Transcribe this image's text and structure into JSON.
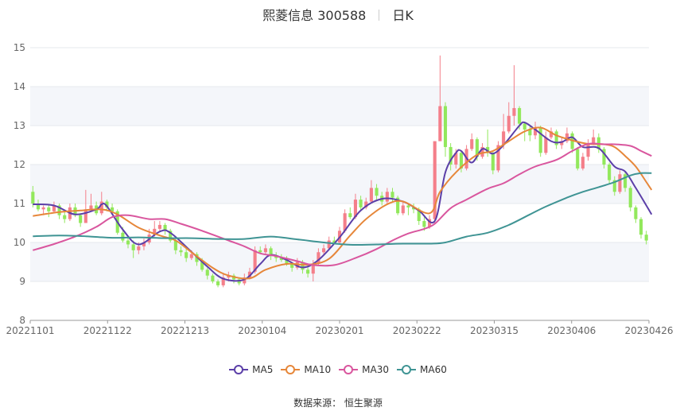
{
  "title": {
    "name": "熙菱信息 300588",
    "period": "日K"
  },
  "source": "数据来源： 恒生聚源",
  "colors": {
    "up": "#f47f8a",
    "down": "#92e85c",
    "grid": "#e6e8ee",
    "band": "#f4f6fa",
    "axis": "#666666"
  },
  "chart_data": {
    "type": "candlestick",
    "ylim": [
      8,
      15
    ],
    "yticks": [
      8,
      9,
      10,
      11,
      12,
      13,
      14,
      15
    ],
    "xticks": [
      "20221101",
      "20221122",
      "20221213",
      "20230104",
      "20230201",
      "20230222",
      "20230315",
      "20230406",
      "20230426"
    ],
    "legend_position": "bottom",
    "candles": [
      [
        11.3,
        11.0,
        11.45,
        10.9
      ],
      [
        11.0,
        10.85,
        11.1,
        10.8
      ],
      [
        10.85,
        10.9,
        10.95,
        10.7
      ],
      [
        10.9,
        10.8,
        10.95,
        10.65
      ],
      [
        10.8,
        10.95,
        11.05,
        10.75
      ],
      [
        10.95,
        10.7,
        11.0,
        10.6
      ],
      [
        10.7,
        10.6,
        10.8,
        10.5
      ],
      [
        10.6,
        10.9,
        11.0,
        10.55
      ],
      [
        10.9,
        10.7,
        11.0,
        10.65
      ],
      [
        10.7,
        10.5,
        10.75,
        10.4
      ],
      [
        10.5,
        10.85,
        11.35,
        10.5
      ],
      [
        10.85,
        10.95,
        11.25,
        10.8
      ],
      [
        10.95,
        10.75,
        11.05,
        10.7
      ],
      [
        10.75,
        11.05,
        11.3,
        10.7
      ],
      [
        11.05,
        10.9,
        11.1,
        10.8
      ],
      [
        10.9,
        10.8,
        11.0,
        10.7
      ],
      [
        10.8,
        10.25,
        10.85,
        10.2
      ],
      [
        10.25,
        10.05,
        10.4,
        10.0
      ],
      [
        10.05,
        9.95,
        10.15,
        9.85
      ],
      [
        9.95,
        9.8,
        10.05,
        9.6
      ],
      [
        9.8,
        9.9,
        10.0,
        9.7
      ],
      [
        9.9,
        10.0,
        10.1,
        9.8
      ],
      [
        10.0,
        10.2,
        10.35,
        9.95
      ],
      [
        10.2,
        10.35,
        10.55,
        10.15
      ],
      [
        10.35,
        10.45,
        10.55,
        10.3
      ],
      [
        10.45,
        10.3,
        10.5,
        10.2
      ],
      [
        10.3,
        10.05,
        10.35,
        10.0
      ],
      [
        10.05,
        9.8,
        10.1,
        9.7
      ],
      [
        9.8,
        9.75,
        9.9,
        9.65
      ],
      [
        9.75,
        9.6,
        9.85,
        9.5
      ],
      [
        9.6,
        9.7,
        9.8,
        9.55
      ],
      [
        9.7,
        9.5,
        9.75,
        9.4
      ],
      [
        9.5,
        9.3,
        9.6,
        9.25
      ],
      [
        9.3,
        9.15,
        9.35,
        9.05
      ],
      [
        9.15,
        9.0,
        9.2,
        8.95
      ],
      [
        9.0,
        8.9,
        9.05,
        8.85
      ],
      [
        8.9,
        9.1,
        9.2,
        8.85
      ],
      [
        9.1,
        9.15,
        9.25,
        9.0
      ],
      [
        9.15,
        9.05,
        9.2,
        8.95
      ],
      [
        9.05,
        8.95,
        9.1,
        8.9
      ],
      [
        8.95,
        9.1,
        9.2,
        8.9
      ],
      [
        9.1,
        9.25,
        9.35,
        9.05
      ],
      [
        9.25,
        9.8,
        9.9,
        9.2
      ],
      [
        9.8,
        9.75,
        9.9,
        9.7
      ],
      [
        9.75,
        9.85,
        9.95,
        9.7
      ],
      [
        9.85,
        9.65,
        9.9,
        9.55
      ],
      [
        9.65,
        9.6,
        9.75,
        9.5
      ],
      [
        9.6,
        9.55,
        9.7,
        9.5
      ],
      [
        9.55,
        9.45,
        9.65,
        9.4
      ],
      [
        9.45,
        9.35,
        9.5,
        9.25
      ],
      [
        9.35,
        9.5,
        9.6,
        9.3
      ],
      [
        9.5,
        9.3,
        9.55,
        9.2
      ],
      [
        9.3,
        9.2,
        9.4,
        9.1
      ],
      [
        9.2,
        9.45,
        9.55,
        9.0
      ],
      [
        9.45,
        9.75,
        9.85,
        9.4
      ],
      [
        9.75,
        9.85,
        9.95,
        9.7
      ],
      [
        9.85,
        10.05,
        10.15,
        9.8
      ],
      [
        10.05,
        10.0,
        10.15,
        9.95
      ],
      [
        10.0,
        10.3,
        10.4,
        9.95
      ],
      [
        10.3,
        10.75,
        10.85,
        10.25
      ],
      [
        10.75,
        10.65,
        10.9,
        10.6
      ],
      [
        10.65,
        11.1,
        11.25,
        10.6
      ],
      [
        11.1,
        10.9,
        11.2,
        10.8
      ],
      [
        10.9,
        11.05,
        11.15,
        10.85
      ],
      [
        11.05,
        11.4,
        11.6,
        11.0
      ],
      [
        11.4,
        11.2,
        11.5,
        11.1
      ],
      [
        11.2,
        11.05,
        11.3,
        10.95
      ],
      [
        11.05,
        11.3,
        11.4,
        11.0
      ],
      [
        11.3,
        11.15,
        11.4,
        11.05
      ],
      [
        11.15,
        10.75,
        11.2,
        10.7
      ],
      [
        10.75,
        10.95,
        11.05,
        10.7
      ],
      [
        10.95,
        10.9,
        11.0,
        10.7
      ],
      [
        10.9,
        10.85,
        11.0,
        10.75
      ],
      [
        10.85,
        10.55,
        10.9,
        10.45
      ],
      [
        10.55,
        10.4,
        10.65,
        10.3
      ],
      [
        10.4,
        10.6,
        10.7,
        10.35
      ],
      [
        10.6,
        12.6,
        12.6,
        10.5
      ],
      [
        12.6,
        13.5,
        14.8,
        13.05
      ],
      [
        13.5,
        12.45,
        13.6,
        12.2
      ],
      [
        12.45,
        12.0,
        12.55,
        11.85
      ],
      [
        12.0,
        12.3,
        12.4,
        11.9
      ],
      [
        12.3,
        11.9,
        12.35,
        11.8
      ],
      [
        11.9,
        12.4,
        12.5,
        11.85
      ],
      [
        12.4,
        12.65,
        12.8,
        12.35
      ],
      [
        12.65,
        12.2,
        12.7,
        12.1
      ],
      [
        12.2,
        12.45,
        12.55,
        12.15
      ],
      [
        12.45,
        12.3,
        12.9,
        12.2
      ],
      [
        12.3,
        11.85,
        12.35,
        11.75
      ],
      [
        11.85,
        12.5,
        12.6,
        11.8
      ],
      [
        12.5,
        12.85,
        13.3,
        12.4
      ],
      [
        12.85,
        13.25,
        13.6,
        12.8
      ],
      [
        13.25,
        13.45,
        14.55,
        13.0
      ],
      [
        13.45,
        13.05,
        13.5,
        12.9
      ],
      [
        13.05,
        12.9,
        13.1,
        12.6
      ],
      [
        12.9,
        12.75,
        13.0,
        12.6
      ],
      [
        12.75,
        12.95,
        13.1,
        12.65
      ],
      [
        12.95,
        12.3,
        13.0,
        12.2
      ],
      [
        12.3,
        12.7,
        12.85,
        12.25
      ],
      [
        12.7,
        12.85,
        12.95,
        12.65
      ],
      [
        12.85,
        12.5,
        12.9,
        12.4
      ],
      [
        12.5,
        12.6,
        12.7,
        12.4
      ],
      [
        12.6,
        12.8,
        12.95,
        12.55
      ],
      [
        12.8,
        12.4,
        12.85,
        12.3
      ],
      [
        12.4,
        11.9,
        12.45,
        11.85
      ],
      [
        11.9,
        12.2,
        12.3,
        11.85
      ],
      [
        12.2,
        12.55,
        12.65,
        12.1
      ],
      [
        12.55,
        12.7,
        12.9,
        12.5
      ],
      [
        12.7,
        12.4,
        12.8,
        12.3
      ],
      [
        12.4,
        12.0,
        12.45,
        11.9
      ],
      [
        12.0,
        11.6,
        12.05,
        11.5
      ],
      [
        11.6,
        11.3,
        11.7,
        11.2
      ],
      [
        11.3,
        11.75,
        11.85,
        11.25
      ],
      [
        11.75,
        11.4,
        11.8,
        11.3
      ],
      [
        11.4,
        10.9,
        11.45,
        10.8
      ],
      [
        10.9,
        10.6,
        10.95,
        10.5
      ],
      [
        10.6,
        10.2,
        10.65,
        10.1
      ],
      [
        10.2,
        10.05,
        10.3,
        9.95
      ]
    ],
    "series": [
      {
        "name": "MA5",
        "color": "#5b3fa8",
        "pts": [
          [
            0,
            10.98
          ],
          [
            4,
            10.95
          ],
          [
            8,
            10.72
          ],
          [
            12,
            10.85
          ],
          [
            13,
            10.98
          ],
          [
            14,
            10.93
          ],
          [
            17,
            10.33
          ],
          [
            20,
            9.95
          ],
          [
            24,
            10.28
          ],
          [
            26,
            10.25
          ],
          [
            30,
            9.76
          ],
          [
            33,
            9.38
          ],
          [
            36,
            9.07
          ],
          [
            40,
            9.05
          ],
          [
            43,
            9.45
          ],
          [
            45,
            9.68
          ],
          [
            48,
            9.55
          ],
          [
            51,
            9.36
          ],
          [
            54,
            9.55
          ],
          [
            58,
            10.13
          ],
          [
            62,
            10.82
          ],
          [
            66,
            11.12
          ],
          [
            70,
            11.05
          ],
          [
            73,
            10.82
          ],
          [
            76,
            10.55
          ],
          [
            78,
            11.8
          ],
          [
            80,
            12.3
          ],
          [
            81,
            12.35
          ],
          [
            83,
            12.05
          ],
          [
            85,
            12.4
          ],
          [
            87,
            12.28
          ],
          [
            89,
            12.5
          ],
          [
            92,
            13.0
          ],
          [
            93,
            13.08
          ],
          [
            95,
            12.9
          ],
          [
            98,
            12.6
          ],
          [
            100,
            12.58
          ],
          [
            102,
            12.7
          ],
          [
            104,
            12.45
          ],
          [
            107,
            12.42
          ],
          [
            110,
            11.95
          ],
          [
            112,
            11.82
          ],
          [
            114,
            11.4
          ],
          [
            116,
            10.95
          ],
          [
            117,
            10.72
          ]
        ]
      },
      {
        "name": "MA10",
        "color": "#e6873a",
        "pts": [
          [
            0,
            10.68
          ],
          [
            5,
            10.78
          ],
          [
            9,
            10.82
          ],
          [
            13,
            10.85
          ],
          [
            16,
            10.72
          ],
          [
            20,
            10.38
          ],
          [
            24,
            10.18
          ],
          [
            27,
            10.05
          ],
          [
            30,
            9.75
          ],
          [
            34,
            9.35
          ],
          [
            37,
            9.15
          ],
          [
            41,
            9.08
          ],
          [
            44,
            9.3
          ],
          [
            48,
            9.45
          ],
          [
            52,
            9.43
          ],
          [
            56,
            9.58
          ],
          [
            60,
            10.18
          ],
          [
            63,
            10.6
          ],
          [
            67,
            10.98
          ],
          [
            70,
            11.05
          ],
          [
            75,
            10.75
          ],
          [
            77,
            11.3
          ],
          [
            80,
            11.8
          ],
          [
            84,
            12.25
          ],
          [
            87,
            12.35
          ],
          [
            90,
            12.6
          ],
          [
            93,
            12.85
          ],
          [
            96,
            12.95
          ],
          [
            99,
            12.75
          ],
          [
            102,
            12.62
          ],
          [
            105,
            12.53
          ],
          [
            108,
            12.52
          ],
          [
            110,
            12.45
          ],
          [
            112,
            12.22
          ],
          [
            114,
            11.95
          ],
          [
            116,
            11.55
          ],
          [
            117,
            11.35
          ]
        ]
      },
      {
        "name": "MA30",
        "color": "#d9569e",
        "pts": [
          [
            0,
            9.8
          ],
          [
            4,
            9.96
          ],
          [
            8,
            10.15
          ],
          [
            12,
            10.4
          ],
          [
            15,
            10.65
          ],
          [
            18,
            10.7
          ],
          [
            22,
            10.6
          ],
          [
            25,
            10.6
          ],
          [
            28,
            10.48
          ],
          [
            32,
            10.3
          ],
          [
            37,
            10.05
          ],
          [
            40,
            9.9
          ],
          [
            43,
            9.72
          ],
          [
            46,
            9.65
          ],
          [
            50,
            9.52
          ],
          [
            53,
            9.42
          ],
          [
            57,
            9.42
          ],
          [
            61,
            9.6
          ],
          [
            65,
            9.83
          ],
          [
            68,
            10.05
          ],
          [
            71,
            10.23
          ],
          [
            74,
            10.35
          ],
          [
            76,
            10.48
          ],
          [
            79,
            10.88
          ],
          [
            82,
            11.1
          ],
          [
            86,
            11.38
          ],
          [
            89,
            11.52
          ],
          [
            92,
            11.75
          ],
          [
            95,
            11.95
          ],
          [
            99,
            12.12
          ],
          [
            102,
            12.35
          ],
          [
            105,
            12.53
          ],
          [
            108,
            12.52
          ],
          [
            110,
            12.52
          ],
          [
            113,
            12.48
          ],
          [
            115,
            12.35
          ],
          [
            117,
            12.22
          ]
        ]
      },
      {
        "name": "MA60",
        "color": "#3f9494",
        "pts": [
          [
            0,
            10.16
          ],
          [
            5,
            10.18
          ],
          [
            10,
            10.16
          ],
          [
            15,
            10.12
          ],
          [
            20,
            10.13
          ],
          [
            25,
            10.11
          ],
          [
            30,
            10.11
          ],
          [
            35,
            10.09
          ],
          [
            40,
            10.09
          ],
          [
            45,
            10.15
          ],
          [
            50,
            10.08
          ],
          [
            55,
            10.0
          ],
          [
            60,
            9.94
          ],
          [
            65,
            9.95
          ],
          [
            70,
            9.97
          ],
          [
            75,
            9.97
          ],
          [
            78,
            10.0
          ],
          [
            82,
            10.15
          ],
          [
            86,
            10.25
          ],
          [
            90,
            10.45
          ],
          [
            94,
            10.72
          ],
          [
            97,
            10.92
          ],
          [
            101,
            11.15
          ],
          [
            104,
            11.3
          ],
          [
            107,
            11.42
          ],
          [
            110,
            11.55
          ],
          [
            113,
            11.72
          ],
          [
            115,
            11.78
          ],
          [
            117,
            11.78
          ]
        ]
      }
    ]
  }
}
